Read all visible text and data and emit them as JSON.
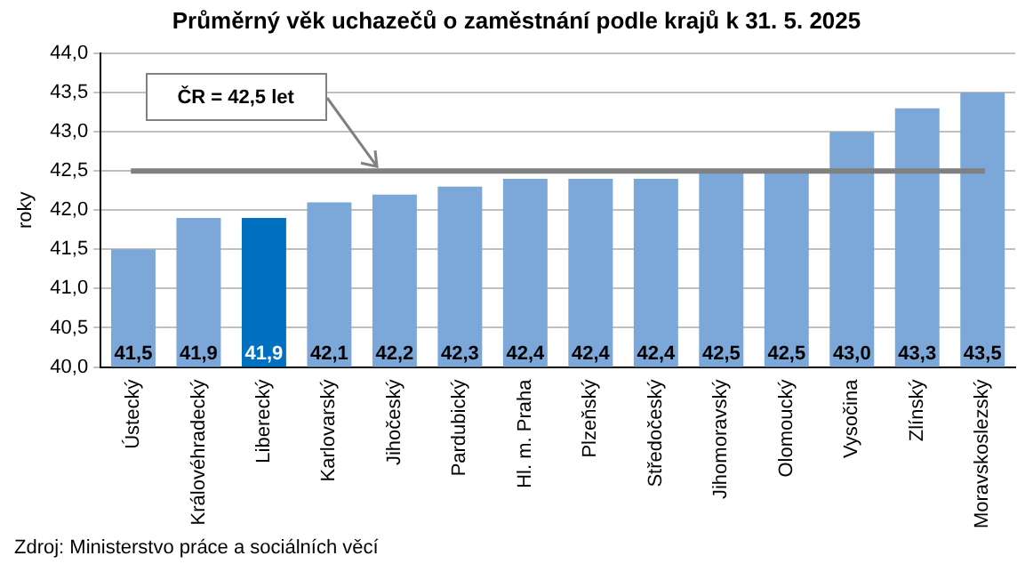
{
  "chart_data": {
    "type": "bar",
    "title": "Průměrný věk uchazečů o zaměstnání podle krajů k 31. 5. 2025",
    "ylabel": "roky",
    "categories": [
      "Ústecký",
      "Královéhradecký",
      "Liberecký",
      "Karlovarský",
      "Jihočeský",
      "Pardubický",
      "Hl. m. Praha",
      "Plzeňský",
      "Středočeský",
      "Jihomoravský",
      "Olomoucký",
      "Vysočina",
      "Zlínský",
      "Moravskoslezský"
    ],
    "values": [
      41.5,
      41.9,
      41.9,
      42.1,
      42.2,
      42.3,
      42.4,
      42.4,
      42.4,
      42.5,
      42.5,
      43.0,
      43.3,
      43.5
    ],
    "value_labels": [
      "41,5",
      "41,9",
      "41,9",
      "42,1",
      "42,2",
      "42,3",
      "42,4",
      "42,4",
      "42,4",
      "42,5",
      "42,5",
      "43,0",
      "43,3",
      "43,5"
    ],
    "colors": [
      "#7ba7d9",
      "#7ba7d9",
      "#0070c0",
      "#7ba7d9",
      "#7ba7d9",
      "#7ba7d9",
      "#7ba7d9",
      "#7ba7d9",
      "#7ba7d9",
      "#7ba7d9",
      "#7ba7d9",
      "#7ba7d9",
      "#7ba7d9",
      "#7ba7d9"
    ],
    "ylim": [
      40,
      44
    ],
    "yticks": [
      {
        "value": 40,
        "label": "40,0"
      },
      {
        "value": 40.5,
        "label": "40,5"
      },
      {
        "value": 41,
        "label": "41,0"
      },
      {
        "value": 41.5,
        "label": "41,5"
      },
      {
        "value": 42,
        "label": "42,0"
      },
      {
        "value": 42.5,
        "label": "42,5"
      },
      {
        "value": 43,
        "label": "43,0"
      },
      {
        "value": 43.5,
        "label": "43,5"
      },
      {
        "value": 44,
        "label": "44,0"
      }
    ],
    "grid": "y",
    "legend": false,
    "ref_lines": [
      {
        "axis": "y",
        "value": 42.5,
        "color": "#808080"
      }
    ],
    "annotations": [
      "ČR = 42,5 let",
      "Zdroj: Ministerstvo práce a sociálních věcí"
    ]
  }
}
